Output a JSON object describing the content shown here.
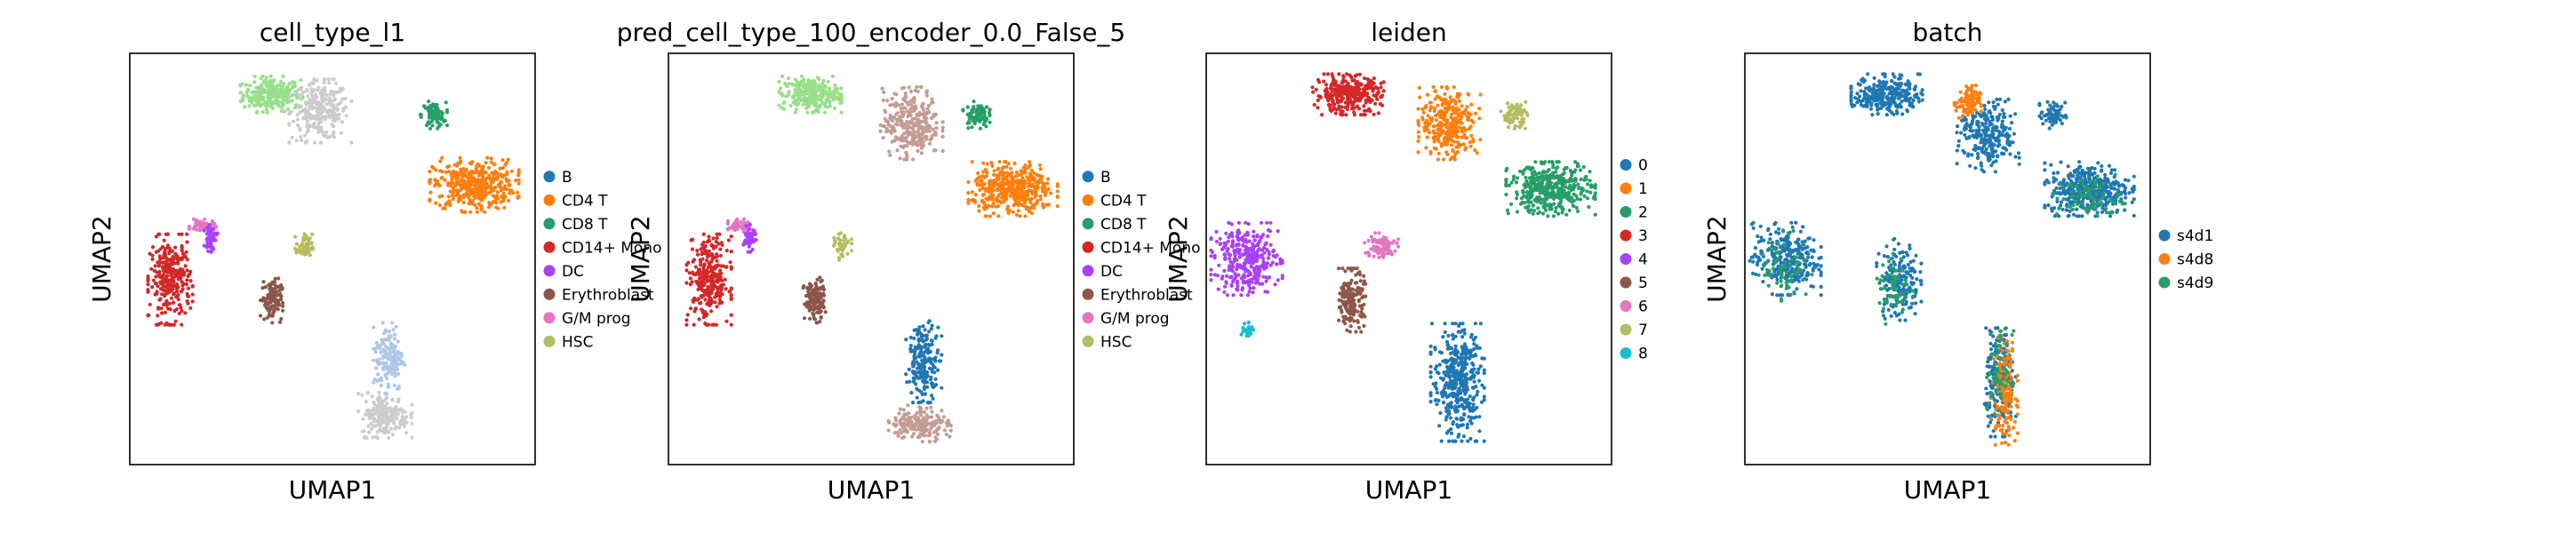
{
  "chart_data": [
    {
      "type": "scatter",
      "title": "cell_type_l1",
      "xlabel": "UMAP1",
      "ylabel": "UMAP2",
      "grid": false,
      "legend_position": "right",
      "legend": [
        {
          "label": "B",
          "color": "#1f77b4"
        },
        {
          "label": "CD4 T",
          "color": "#ff7f0e"
        },
        {
          "label": "CD8 T",
          "color": "#279e68"
        },
        {
          "label": "CD14+ Mono",
          "color": "#d62728"
        },
        {
          "label": "DC",
          "color": "#aa40fc"
        },
        {
          "label": "Erythroblast",
          "color": "#8c564b"
        },
        {
          "label": "G/M prog",
          "color": "#e377c2"
        },
        {
          "label": "HSC",
          "color": "#b5bd61"
        }
      ],
      "clusters": [
        {
          "label": "CD8 T",
          "color": "#98df8a",
          "cx": 0.35,
          "cy": 0.9,
          "rx": 0.07,
          "ry": 0.04,
          "n": 260
        },
        {
          "label": "CD4 T",
          "color": "#cccccc",
          "cx": 0.47,
          "cy": 0.86,
          "rx": 0.07,
          "ry": 0.07,
          "n": 260
        },
        {
          "label": "CD8 T",
          "color": "#279e68",
          "cx": 0.75,
          "cy": 0.85,
          "rx": 0.03,
          "ry": 0.03,
          "n": 80
        },
        {
          "label": "CD4 T",
          "color": "#ff7f0e",
          "cx": 0.85,
          "cy": 0.68,
          "rx": 0.1,
          "ry": 0.06,
          "n": 420
        },
        {
          "label": "CD14+ Mono",
          "color": "#d62728",
          "cx": 0.1,
          "cy": 0.45,
          "rx": 0.05,
          "ry": 0.1,
          "n": 300
        },
        {
          "label": "G/M prog",
          "color": "#e377c2",
          "cx": 0.18,
          "cy": 0.58,
          "rx": 0.03,
          "ry": 0.015,
          "n": 60
        },
        {
          "label": "DC",
          "color": "#aa40fc",
          "cx": 0.2,
          "cy": 0.55,
          "rx": 0.015,
          "ry": 0.03,
          "n": 45
        },
        {
          "label": "Erythroblast",
          "color": "#8c564b",
          "cx": 0.35,
          "cy": 0.4,
          "rx": 0.025,
          "ry": 0.05,
          "n": 120
        },
        {
          "label": "HSC",
          "color": "#b5bd61",
          "cx": 0.43,
          "cy": 0.53,
          "rx": 0.02,
          "ry": 0.03,
          "n": 45
        },
        {
          "label": "B",
          "color": "#aec7e8",
          "cx": 0.64,
          "cy": 0.26,
          "rx": 0.035,
          "ry": 0.08,
          "n": 160
        },
        {
          "label": "B",
          "color": "#cccccc",
          "cx": 0.63,
          "cy": 0.12,
          "rx": 0.06,
          "ry": 0.05,
          "n": 200
        }
      ]
    },
    {
      "type": "scatter",
      "title": "pred_cell_type_100_encoder_0.0_False_5",
      "xlabel": "UMAP1",
      "ylabel": "UMAP2",
      "grid": false,
      "legend_position": "right",
      "legend": [
        {
          "label": "B",
          "color": "#1f77b4"
        },
        {
          "label": "CD4 T",
          "color": "#ff7f0e"
        },
        {
          "label": "CD8 T",
          "color": "#279e68"
        },
        {
          "label": "CD14+ Mono",
          "color": "#d62728"
        },
        {
          "label": "DC",
          "color": "#aa40fc"
        },
        {
          "label": "Erythroblast",
          "color": "#8c564b"
        },
        {
          "label": "G/M prog",
          "color": "#e377c2"
        },
        {
          "label": "HSC",
          "color": "#b5bd61"
        }
      ],
      "clusters": [
        {
          "label": "CD8 T",
          "color": "#98df8a",
          "cx": 0.35,
          "cy": 0.9,
          "rx": 0.07,
          "ry": 0.04,
          "n": 260
        },
        {
          "label": "CD4 T",
          "color": "#c49c94",
          "cx": 0.6,
          "cy": 0.83,
          "rx": 0.07,
          "ry": 0.08,
          "n": 300
        },
        {
          "label": "CD8 T",
          "color": "#279e68",
          "cx": 0.76,
          "cy": 0.85,
          "rx": 0.03,
          "ry": 0.03,
          "n": 80
        },
        {
          "label": "CD4 T",
          "color": "#ff7f0e",
          "cx": 0.85,
          "cy": 0.67,
          "rx": 0.1,
          "ry": 0.06,
          "n": 420
        },
        {
          "label": "CD14+ Mono",
          "color": "#d62728",
          "cx": 0.1,
          "cy": 0.45,
          "rx": 0.05,
          "ry": 0.1,
          "n": 300
        },
        {
          "label": "G/M prog",
          "color": "#e377c2",
          "cx": 0.18,
          "cy": 0.58,
          "rx": 0.03,
          "ry": 0.015,
          "n": 60
        },
        {
          "label": "DC",
          "color": "#aa40fc",
          "cx": 0.2,
          "cy": 0.55,
          "rx": 0.015,
          "ry": 0.03,
          "n": 45
        },
        {
          "label": "Erythroblast",
          "color": "#8c564b",
          "cx": 0.36,
          "cy": 0.4,
          "rx": 0.025,
          "ry": 0.05,
          "n": 120
        },
        {
          "label": "HSC",
          "color": "#b5bd61",
          "cx": 0.43,
          "cy": 0.53,
          "rx": 0.02,
          "ry": 0.03,
          "n": 45
        },
        {
          "label": "B",
          "color": "#1f77b4",
          "cx": 0.63,
          "cy": 0.25,
          "rx": 0.04,
          "ry": 0.09,
          "n": 200
        },
        {
          "label": "B",
          "color": "#c49c94",
          "cx": 0.62,
          "cy": 0.1,
          "rx": 0.07,
          "ry": 0.04,
          "n": 180
        }
      ]
    },
    {
      "type": "scatter",
      "title": "leiden",
      "xlabel": "UMAP1",
      "ylabel": "UMAP2",
      "grid": false,
      "legend_position": "right",
      "legend": [
        {
          "label": "0",
          "color": "#1f77b4"
        },
        {
          "label": "1",
          "color": "#ff7f0e"
        },
        {
          "label": "2",
          "color": "#279e68"
        },
        {
          "label": "3",
          "color": "#d62728"
        },
        {
          "label": "4",
          "color": "#aa40fc"
        },
        {
          "label": "5",
          "color": "#8c564b"
        },
        {
          "label": "6",
          "color": "#e377c2"
        },
        {
          "label": "7",
          "color": "#b5bd61"
        },
        {
          "label": "8",
          "color": "#17becf"
        }
      ],
      "clusters": [
        {
          "label": "3",
          "color": "#d62728",
          "cx": 0.35,
          "cy": 0.9,
          "rx": 0.08,
          "ry": 0.045,
          "n": 320
        },
        {
          "label": "1",
          "color": "#ff7f0e",
          "cx": 0.6,
          "cy": 0.83,
          "rx": 0.07,
          "ry": 0.08,
          "n": 320
        },
        {
          "label": "7",
          "color": "#b5bd61",
          "cx": 0.76,
          "cy": 0.85,
          "rx": 0.03,
          "ry": 0.03,
          "n": 80
        },
        {
          "label": "2",
          "color": "#279e68",
          "cx": 0.85,
          "cy": 0.67,
          "rx": 0.1,
          "ry": 0.06,
          "n": 420
        },
        {
          "label": "4",
          "color": "#aa40fc",
          "cx": 0.1,
          "cy": 0.5,
          "rx": 0.08,
          "ry": 0.08,
          "n": 340
        },
        {
          "label": "8",
          "color": "#17becf",
          "cx": 0.1,
          "cy": 0.33,
          "rx": 0.015,
          "ry": 0.02,
          "n": 30
        },
        {
          "label": "6",
          "color": "#e377c2",
          "cx": 0.43,
          "cy": 0.53,
          "rx": 0.04,
          "ry": 0.03,
          "n": 90
        },
        {
          "label": "5",
          "color": "#8c564b",
          "cx": 0.36,
          "cy": 0.4,
          "rx": 0.03,
          "ry": 0.07,
          "n": 180
        },
        {
          "label": "0",
          "color": "#1f77b4",
          "cx": 0.62,
          "cy": 0.2,
          "rx": 0.06,
          "ry": 0.13,
          "n": 420
        }
      ]
    },
    {
      "type": "scatter",
      "title": "batch",
      "xlabel": "UMAP1",
      "ylabel": "UMAP2",
      "grid": false,
      "legend_position": "right",
      "legend": [
        {
          "label": "s4d1",
          "color": "#1f77b4"
        },
        {
          "label": "s4d8",
          "color": "#ff7f0e"
        },
        {
          "label": "s4d9",
          "color": "#279e68"
        }
      ],
      "clusters": [
        {
          "label": "s4d1",
          "color": "#1f77b4",
          "cx": 0.35,
          "cy": 0.9,
          "rx": 0.08,
          "ry": 0.045,
          "n": 280
        },
        {
          "label": "s4d1",
          "color": "#1f77b4",
          "cx": 0.6,
          "cy": 0.8,
          "rx": 0.07,
          "ry": 0.08,
          "n": 260
        },
        {
          "label": "s4d8",
          "color": "#ff7f0e",
          "cx": 0.55,
          "cy": 0.88,
          "rx": 0.03,
          "ry": 0.04,
          "n": 90
        },
        {
          "label": "s4d1",
          "color": "#1f77b4",
          "cx": 0.76,
          "cy": 0.85,
          "rx": 0.03,
          "ry": 0.03,
          "n": 70
        },
        {
          "label": "s4d1",
          "color": "#1f77b4",
          "cx": 0.85,
          "cy": 0.67,
          "rx": 0.1,
          "ry": 0.06,
          "n": 380
        },
        {
          "label": "s4d9",
          "color": "#279e68",
          "cx": 0.85,
          "cy": 0.65,
          "rx": 0.08,
          "ry": 0.05,
          "n": 80
        },
        {
          "label": "s4d1",
          "color": "#1f77b4",
          "cx": 0.1,
          "cy": 0.5,
          "rx": 0.08,
          "ry": 0.08,
          "n": 280
        },
        {
          "label": "s4d9",
          "color": "#279e68",
          "cx": 0.1,
          "cy": 0.48,
          "rx": 0.06,
          "ry": 0.08,
          "n": 70
        },
        {
          "label": "s4d1",
          "color": "#1f77b4",
          "cx": 0.38,
          "cy": 0.45,
          "rx": 0.05,
          "ry": 0.09,
          "n": 180
        },
        {
          "label": "s4d9",
          "color": "#279e68",
          "cx": 0.37,
          "cy": 0.43,
          "rx": 0.04,
          "ry": 0.08,
          "n": 60
        },
        {
          "label": "s4d1",
          "color": "#1f77b4",
          "cx": 0.63,
          "cy": 0.2,
          "rx": 0.035,
          "ry": 0.12,
          "n": 220
        },
        {
          "label": "s4d8",
          "color": "#ff7f0e",
          "cx": 0.64,
          "cy": 0.18,
          "rx": 0.03,
          "ry": 0.12,
          "n": 160
        },
        {
          "label": "s4d9",
          "color": "#279e68",
          "cx": 0.63,
          "cy": 0.22,
          "rx": 0.03,
          "ry": 0.1,
          "n": 60
        }
      ]
    }
  ]
}
